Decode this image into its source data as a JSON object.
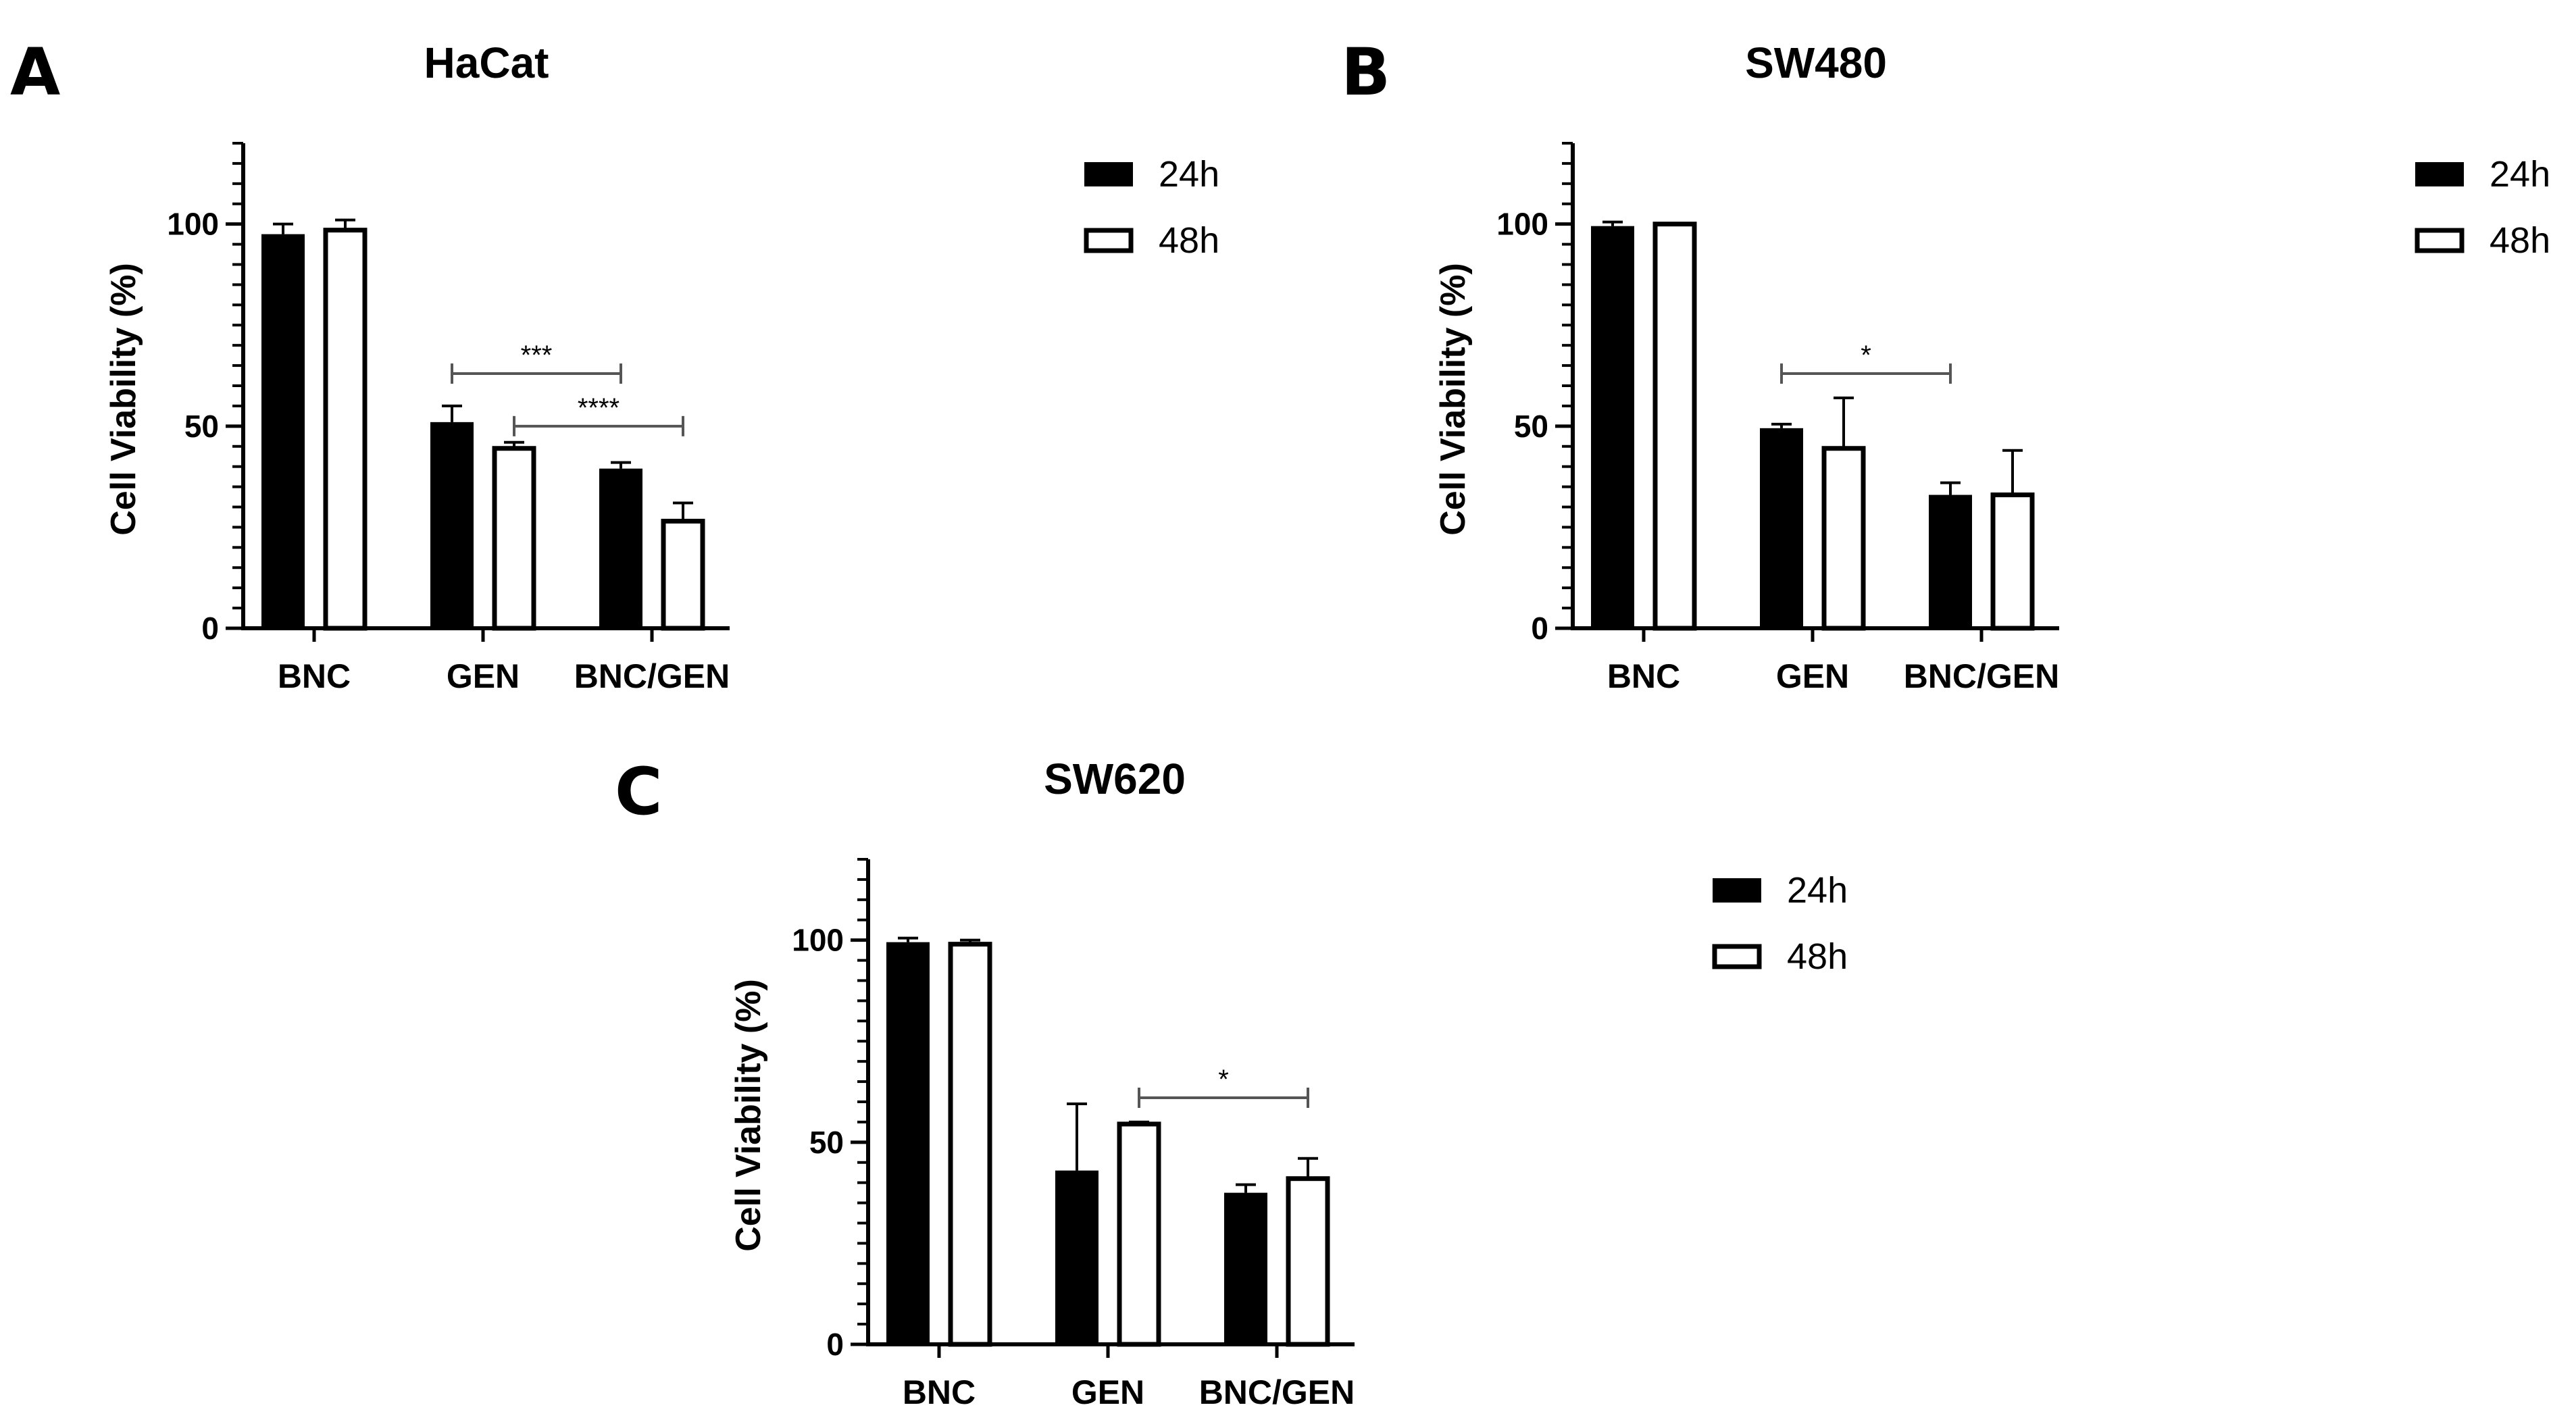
{
  "figure": {
    "type": "grouped bar charts",
    "panels": 3
  },
  "chart_data": [
    {
      "panel": "A",
      "type": "bar",
      "title": "HaCat",
      "xlabel": "",
      "ylabel": "Cell Viability (%)",
      "ylim": [
        0,
        120
      ],
      "yticks": [
        0,
        50,
        100
      ],
      "categories": [
        "BNC",
        "GEN",
        "BNC/GEN"
      ],
      "series": [
        {
          "name": "24h",
          "fill": "#000000",
          "values": [
            97.5,
            51,
            39.5
          ],
          "errors": [
            2.5,
            4,
            1.5
          ]
        },
        {
          "name": "48h",
          "fill": "#ffffff",
          "values": [
            98.5,
            44.5,
            26.5
          ],
          "errors": [
            2.5,
            1.5,
            4.5
          ]
        }
      ],
      "significance": [
        {
          "label": "***",
          "from": [
            1,
            0
          ],
          "to": [
            2,
            0
          ],
          "y": 63
        },
        {
          "label": "****",
          "from": [
            1,
            1
          ],
          "to": [
            2,
            1
          ],
          "y": 50
        }
      ]
    },
    {
      "panel": "B",
      "type": "bar",
      "title": "SW480",
      "xlabel": "",
      "ylabel": "Cell Viability (%)",
      "ylim": [
        0,
        120
      ],
      "yticks": [
        0,
        50,
        100
      ],
      "categories": [
        "BNC",
        "GEN",
        "BNC/GEN"
      ],
      "series": [
        {
          "name": "24h",
          "fill": "#000000",
          "values": [
            99.5,
            49.5,
            33
          ],
          "errors": [
            1,
            1,
            3
          ]
        },
        {
          "name": "48h",
          "fill": "#ffffff",
          "values": [
            100,
            44.5,
            33
          ],
          "errors": [
            0,
            12.5,
            11
          ]
        }
      ],
      "significance": [
        {
          "label": "*",
          "from": [
            1,
            0
          ],
          "to": [
            2,
            0
          ],
          "y": 63
        }
      ]
    },
    {
      "panel": "C",
      "type": "bar",
      "title": "SW620",
      "xlabel": "",
      "ylabel": "Cell Viability (%)",
      "ylim": [
        0,
        120
      ],
      "yticks": [
        0,
        50,
        100
      ],
      "categories": [
        "BNC",
        "GEN",
        "BNC/GEN"
      ],
      "series": [
        {
          "name": "24h",
          "fill": "#000000",
          "values": [
            99.5,
            43,
            37.5
          ],
          "errors": [
            1,
            16.5,
            2
          ]
        },
        {
          "name": "48h",
          "fill": "#ffffff",
          "values": [
            99,
            54.5,
            41
          ],
          "errors": [
            1,
            0.5,
            5
          ]
        }
      ],
      "significance": [
        {
          "label": "*",
          "from": [
            1,
            1
          ],
          "to": [
            2,
            1
          ],
          "y": 61
        }
      ]
    }
  ]
}
